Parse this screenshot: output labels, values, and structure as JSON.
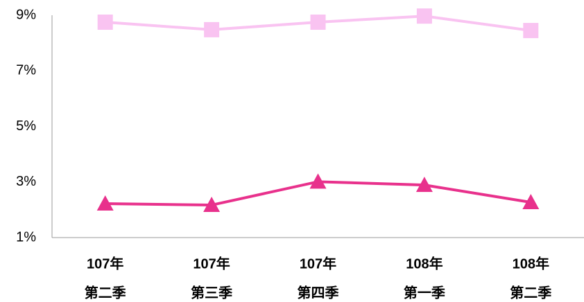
{
  "chart_data": {
    "type": "line",
    "categories": [
      [
        "107年",
        "第二季"
      ],
      [
        "107年",
        "第三季"
      ],
      [
        "107年",
        "第四季"
      ],
      [
        "108年",
        "第一季"
      ],
      [
        "108年",
        "第二季"
      ]
    ],
    "series": [
      {
        "color": "#f9c3f1",
        "marker": "square",
        "values": [
          8.75,
          8.48,
          8.75,
          8.97,
          8.45
        ]
      },
      {
        "color": "#e8318c",
        "marker": "triangle",
        "values": [
          2.22,
          2.17,
          3.01,
          2.89,
          2.27
        ]
      }
    ],
    "ylim": [
      1,
      9
    ],
    "yticks": [
      {
        "value": 1,
        "label": "1%"
      },
      {
        "value": 3,
        "label": "3%"
      },
      {
        "value": 5,
        "label": "5%"
      },
      {
        "value": 7,
        "label": "7%"
      },
      {
        "value": 9,
        "label": "9%"
      }
    ],
    "grid": false
  }
}
